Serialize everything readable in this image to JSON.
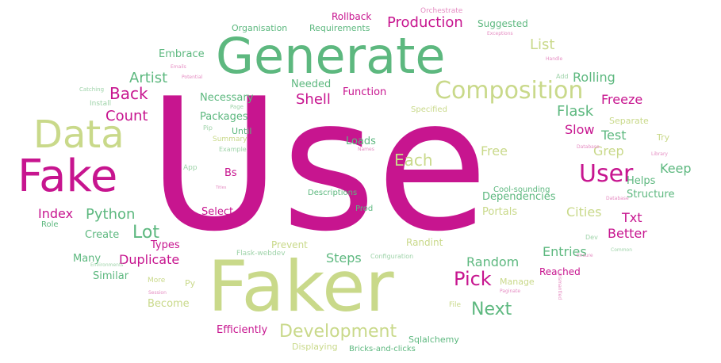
{
  "palette": {
    "magenta": "#c7158f",
    "pink": "#d44fa9",
    "green": "#5db87f",
    "olive": "#c9d98a",
    "lightpink": "#e58cc2",
    "lightgreen": "#9ed3a9"
  },
  "words": [
    {
      "text": "Use",
      "color": "magenta"
    },
    {
      "text": "Generate",
      "color": "green"
    },
    {
      "text": "Faker",
      "color": "olive"
    },
    {
      "text": "Fake",
      "color": "magenta"
    },
    {
      "text": "Data",
      "color": "olive"
    },
    {
      "text": "Composition",
      "color": "olive"
    },
    {
      "text": "User",
      "color": "magenta"
    },
    {
      "text": "Development",
      "color": "olive"
    },
    {
      "text": "Pick",
      "color": "magenta"
    },
    {
      "text": "Next",
      "color": "green"
    },
    {
      "text": "Artist",
      "color": "green"
    },
    {
      "text": "Back",
      "color": "magenta"
    },
    {
      "text": "Count",
      "color": "magenta"
    },
    {
      "text": "Index",
      "color": "magenta"
    },
    {
      "text": "Python",
      "color": "green"
    },
    {
      "text": "Lot",
      "color": "green"
    },
    {
      "text": "Production",
      "color": "magenta"
    },
    {
      "text": "Shell",
      "color": "magenta"
    },
    {
      "text": "List",
      "color": "olive"
    },
    {
      "text": "Flask",
      "color": "green"
    },
    {
      "text": "Rolling",
      "color": "green"
    },
    {
      "text": "Freeze",
      "color": "magenta"
    },
    {
      "text": "Slow",
      "color": "magenta"
    },
    {
      "text": "Test",
      "color": "green"
    },
    {
      "text": "Keep",
      "color": "green"
    },
    {
      "text": "Each",
      "color": "olive"
    },
    {
      "text": "Grep",
      "color": "olive"
    },
    {
      "text": "Free",
      "color": "olive"
    },
    {
      "text": "Txt",
      "color": "magenta"
    },
    {
      "text": "Better",
      "color": "magenta"
    },
    {
      "text": "Cities",
      "color": "olive"
    },
    {
      "text": "Random",
      "color": "green"
    },
    {
      "text": "Entries",
      "color": "green"
    },
    {
      "text": "Duplicate",
      "color": "magenta"
    },
    {
      "text": "Steps",
      "color": "green"
    },
    {
      "text": "Embrace",
      "color": "green"
    },
    {
      "text": "Necessary",
      "color": "green"
    },
    {
      "text": "Needed",
      "color": "green"
    },
    {
      "text": "Function",
      "color": "magenta"
    },
    {
      "text": "Packages",
      "color": "green"
    },
    {
      "text": "Loads",
      "color": "green"
    },
    {
      "text": "Bs",
      "color": "magenta"
    },
    {
      "text": "Select",
      "color": "magenta"
    },
    {
      "text": "Dependencies",
      "color": "green"
    },
    {
      "text": "Portals",
      "color": "olive"
    },
    {
      "text": "Helps",
      "color": "green"
    },
    {
      "text": "Structure",
      "color": "green"
    },
    {
      "text": "Many",
      "color": "green"
    },
    {
      "text": "Similar",
      "color": "green"
    },
    {
      "text": "Types",
      "color": "magenta"
    },
    {
      "text": "Create",
      "color": "green"
    },
    {
      "text": "Become",
      "color": "olive"
    },
    {
      "text": "Efficiently",
      "color": "magenta"
    },
    {
      "text": "Rollback",
      "color": "magenta"
    },
    {
      "text": "Requirements",
      "color": "green"
    },
    {
      "text": "Organisation",
      "color": "green"
    },
    {
      "text": "Suggested",
      "color": "green"
    },
    {
      "text": "Until",
      "color": "green"
    },
    {
      "text": "Separate",
      "color": "olive"
    },
    {
      "text": "Try",
      "color": "olive"
    },
    {
      "text": "Prevent",
      "color": "olive"
    },
    {
      "text": "Randint",
      "color": "olive"
    },
    {
      "text": "Reached",
      "color": "magenta"
    },
    {
      "text": "Manage",
      "color": "olive"
    },
    {
      "text": "Sqlalchemy",
      "color": "green"
    },
    {
      "text": "Displaying",
      "color": "olive"
    },
    {
      "text": "Bricks-and-clicks",
      "color": "green"
    },
    {
      "text": "Descriptions",
      "color": "green"
    },
    {
      "text": "Prod",
      "color": "green"
    },
    {
      "text": "Cool-sounding",
      "color": "green"
    },
    {
      "text": "Specified",
      "color": "olive"
    },
    {
      "text": "Role",
      "color": "green"
    },
    {
      "text": "Py",
      "color": "olive"
    },
    {
      "text": "More",
      "color": "olive"
    },
    {
      "text": "Orchestrate",
      "color": "lightpink"
    },
    {
      "text": "Configuration",
      "color": "lightgreen"
    },
    {
      "text": "Flask-webdev",
      "color": "lightgreen"
    },
    {
      "text": "File",
      "color": "olive"
    },
    {
      "text": "Install",
      "color": "lightgreen"
    },
    {
      "text": "Summary",
      "color": "olive"
    },
    {
      "text": "Pip",
      "color": "lightgreen"
    },
    {
      "text": "Page",
      "color": "lightgreen"
    },
    {
      "text": "App",
      "color": "lightgreen"
    },
    {
      "text": "Example",
      "color": "lightgreen"
    },
    {
      "text": "Catching",
      "color": "lightgreen"
    },
    {
      "text": "Emails",
      "color": "lightpink"
    },
    {
      "text": "Potential",
      "color": "lightpink"
    },
    {
      "text": "Handle",
      "color": "lightpink"
    },
    {
      "text": "Exceptions",
      "color": "lightpink"
    },
    {
      "text": "Add",
      "color": "lightgreen"
    },
    {
      "text": "Names",
      "color": "lightpink"
    },
    {
      "text": "Titles",
      "color": "lightpink"
    },
    {
      "text": "Library",
      "color": "lightpink"
    },
    {
      "text": "Ensure",
      "color": "lightpink"
    },
    {
      "text": "Common",
      "color": "lightgreen"
    },
    {
      "text": "Dev",
      "color": "lightgreen"
    },
    {
      "text": "Paginate",
      "color": "lightpink"
    },
    {
      "text": "Session",
      "color": "lightpink"
    },
    {
      "text": "Environments",
      "color": "lightgreen"
    },
    {
      "text": "Dismantled",
      "color": "lightpink"
    },
    {
      "text": "Database",
      "color": "lightpink"
    },
    {
      "text": "Database",
      "color": "lightpink"
    }
  ]
}
